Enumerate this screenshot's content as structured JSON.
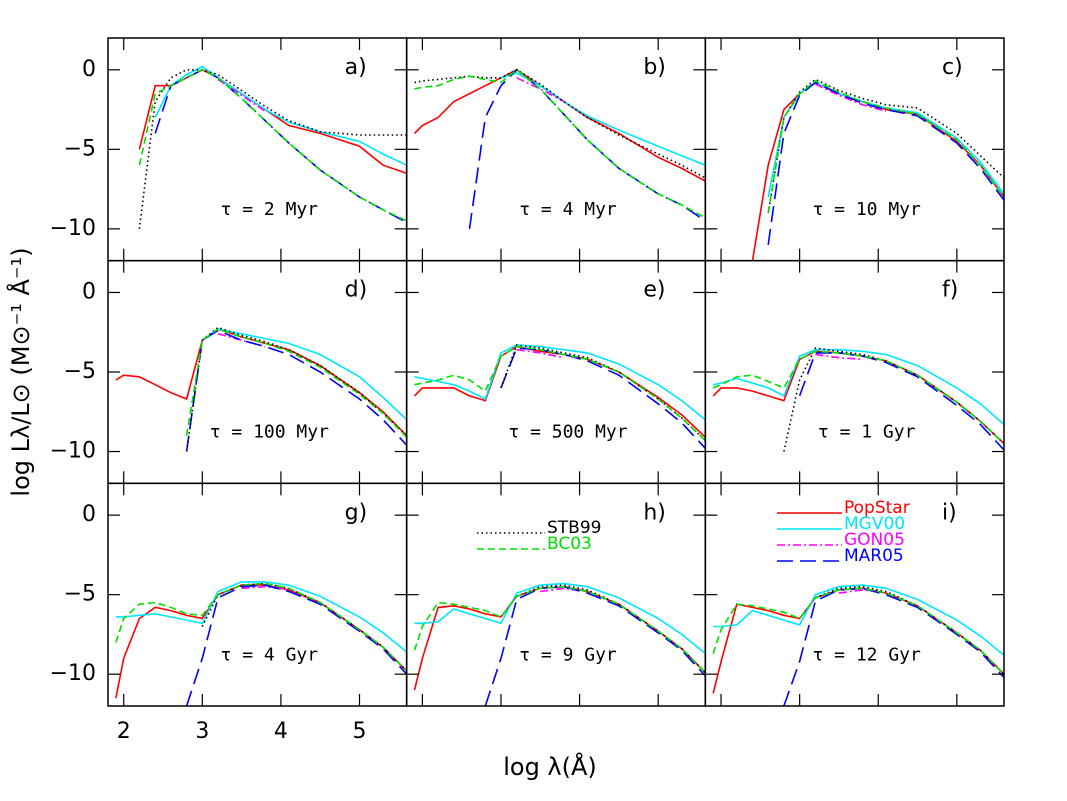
{
  "chart_data": {
    "type": "line",
    "xlabel": "log λ(Å)",
    "ylabel": "log Lλ/L⊙ (M⊙⁻¹ Å⁻¹)",
    "xlim": [
      1.8,
      5.6
    ],
    "xticks": [
      2,
      3,
      4,
      5
    ],
    "ylim": [
      -12,
      2
    ],
    "yticks": [
      0,
      {
        "value": -5,
        "label": "−5"
      },
      {
        "value": -10,
        "label": "−10"
      }
    ],
    "series": [
      {
        "name": "PopStar",
        "color": "#ff0000",
        "style": "solid"
      },
      {
        "name": "MGV00",
        "color": "#00e5ff",
        "style": "solid"
      },
      {
        "name": "GON05",
        "color": "#ff00ff",
        "style": "dash-dot"
      },
      {
        "name": "MAR05",
        "color": "#0000ff",
        "style": "long-dash"
      },
      {
        "name": "STB99",
        "color": "#000000",
        "style": "dotted"
      },
      {
        "name": "BC03",
        "color": "#00e000",
        "style": "dashed"
      }
    ],
    "x": [
      1.9,
      2.0,
      2.2,
      2.4,
      2.6,
      2.8,
      3.0,
      3.2,
      3.5,
      3.8,
      4.1,
      4.5,
      5.0,
      5.3,
      5.6
    ],
    "panels": [
      {
        "label": "a)",
        "annotation": "τ = 2  Myr",
        "values": [
          [
            null,
            null,
            -5,
            -1,
            -1,
            -0.5,
            0,
            -0.5,
            -1.5,
            -2.5,
            -3.5,
            -4,
            -4.8,
            -6,
            -6.5
          ],
          [
            null,
            null,
            null,
            -3,
            -1,
            -0.3,
            0.2,
            -0.5,
            -1.5,
            -2.5,
            -3.3,
            -3.9,
            -4.5,
            -5.3,
            -6
          ],
          [
            null,
            null,
            null,
            null,
            null,
            null,
            null,
            -0.6,
            -1.6,
            -2.6,
            null,
            null,
            null,
            null,
            null
          ],
          [
            null,
            null,
            null,
            -4,
            -1,
            -0.5,
            0,
            -0.5,
            -1.8,
            -3.2,
            -4.6,
            -6.3,
            -8,
            -8.8,
            -9.6
          ],
          [
            null,
            null,
            -10,
            -2,
            -0.5,
            0,
            0,
            -0.3,
            -1.3,
            -2.3,
            -3.2,
            -3.9,
            -4.1,
            -4.1,
            -4.1
          ],
          [
            null,
            null,
            -6,
            -1.5,
            -1,
            -0.5,
            0,
            -0.5,
            -1.8,
            -3.2,
            -4.6,
            -6.3,
            -8,
            -8.8,
            -9.5
          ]
        ]
      },
      {
        "label": "b)",
        "annotation": "τ = 4 Myr",
        "values": [
          [
            -4,
            -3.5,
            -3,
            -2,
            -1.5,
            -1,
            -0.5,
            0,
            -1,
            -2,
            -3,
            -4,
            -5.5,
            -6.2,
            -7
          ],
          [
            null,
            null,
            null,
            null,
            null,
            null,
            -0.5,
            -0.2,
            -1,
            -2,
            -2.9,
            -3.8,
            -4.8,
            -5.4,
            -6
          ],
          [
            null,
            null,
            null,
            null,
            null,
            null,
            null,
            -0.5,
            -1.2,
            -2,
            null,
            null,
            null,
            null,
            null
          ],
          [
            null,
            null,
            null,
            null,
            -10,
            -3,
            -1,
            0,
            -1.2,
            -2.8,
            -4.4,
            -6.2,
            -7.8,
            -8.5,
            -9.5
          ],
          [
            -0.8,
            -0.7,
            -0.6,
            -0.5,
            -0.4,
            -0.5,
            -0.5,
            0,
            -0.9,
            -2,
            -3,
            -4.1,
            -5.3,
            -6,
            -6.8
          ],
          [
            -1.2,
            -1.1,
            -1,
            -0.6,
            -0.4,
            -0.6,
            -0.8,
            0,
            -1.2,
            -2.8,
            -4.4,
            -6.2,
            -7.8,
            -8.5,
            -9.3
          ]
        ]
      },
      {
        "label": "c)",
        "annotation": "τ = 10 Myr",
        "values": [
          [
            null,
            null,
            null,
            -12,
            -6,
            -2.5,
            -1.5,
            -0.8,
            -1.5,
            -2,
            -2.5,
            -2.8,
            -4.5,
            -6,
            -8
          ],
          [
            null,
            null,
            null,
            null,
            -8,
            -3,
            -1.5,
            -0.8,
            -1.5,
            -2,
            -2.4,
            -2.7,
            -4.3,
            -5.8,
            -7.8
          ],
          [
            null,
            null,
            null,
            null,
            null,
            null,
            null,
            -0.9,
            -1.6,
            -2.2,
            -2.6,
            null,
            null,
            null,
            null
          ],
          [
            null,
            null,
            null,
            null,
            -11,
            -4,
            -1.6,
            -0.8,
            -1.5,
            -2.1,
            -2.5,
            -2.9,
            -4.6,
            -6.2,
            -8.2
          ],
          [
            null,
            null,
            null,
            null,
            -9,
            -3,
            -1.4,
            -0.6,
            -1.3,
            -1.8,
            -2.2,
            -2.4,
            -4,
            -5.4,
            -6.8
          ],
          [
            null,
            null,
            null,
            null,
            -9,
            -3,
            -1.5,
            -0.7,
            -1.4,
            -2,
            -2.4,
            -2.8,
            -4.4,
            -6,
            -8
          ]
        ]
      },
      {
        "label": "d)",
        "annotation": "τ = 100 Myr",
        "values": [
          [
            -5.5,
            -5.2,
            -5.3,
            -5.8,
            -6.3,
            -6.7,
            -3,
            -2.3,
            -2.8,
            -3.2,
            -3.6,
            -4.6,
            -6.3,
            -7.5,
            -9
          ],
          [
            null,
            null,
            null,
            null,
            null,
            null,
            -3,
            -2.3,
            -2.6,
            -2.9,
            -3.2,
            -3.9,
            -5.3,
            -6.6,
            -8
          ],
          [
            null,
            null,
            null,
            null,
            null,
            null,
            null,
            -2.6,
            -3,
            -3.4,
            null,
            null,
            null,
            null,
            null
          ],
          [
            null,
            null,
            null,
            null,
            null,
            -10,
            -3,
            -2.4,
            -3,
            -3.4,
            -3.9,
            -5,
            -6.7,
            -8,
            -9.6
          ],
          [
            null,
            null,
            null,
            null,
            null,
            -10,
            -3,
            -2.2,
            -2.7,
            -3.1,
            -3.6,
            -4.6,
            -6.3,
            -7.6,
            -9
          ],
          [
            null,
            null,
            null,
            null,
            null,
            -9,
            -3,
            -2.3,
            -2.8,
            -3.2,
            -3.7,
            -4.7,
            -6.4,
            -7.6,
            -9.1
          ]
        ]
      },
      {
        "label": "e)",
        "annotation": "τ = 500 Myr",
        "values": [
          [
            -6.5,
            -6,
            -6,
            -6,
            -6.5,
            -6.8,
            -4,
            -3.4,
            -3.7,
            -3.9,
            -4.2,
            -5,
            -6.6,
            -7.7,
            -9.1
          ],
          [
            -5.3,
            -5.4,
            -5.6,
            -5.8,
            -6.2,
            -6.7,
            -3.8,
            -3.3,
            -3.4,
            -3.6,
            -3.8,
            -4.5,
            -5.8,
            -6.8,
            -8
          ],
          [
            null,
            null,
            null,
            null,
            null,
            null,
            null,
            -3.6,
            -3.8,
            -4.1,
            null,
            null,
            null,
            null,
            null
          ],
          [
            null,
            null,
            null,
            null,
            null,
            null,
            -6,
            -3.5,
            -3.6,
            -3.9,
            -4.3,
            -5.2,
            -7,
            -8.2,
            -9.8
          ],
          [
            null,
            null,
            null,
            null,
            null,
            null,
            -6,
            -3.3,
            -3.5,
            -3.8,
            -4.1,
            -5,
            -6.7,
            -7.9,
            -9.3
          ],
          [
            -5.8,
            -5.7,
            -5.5,
            -5.2,
            -5.5,
            -6.2,
            -4,
            -3.4,
            -3.6,
            -3.9,
            -4.2,
            -5,
            -6.7,
            -7.9,
            -9.3
          ]
        ]
      },
      {
        "label": "f)",
        "annotation": "τ = 1 Gyr",
        "values": [
          [
            -6.5,
            -6,
            -6,
            -6.2,
            -6.5,
            -6.8,
            -4.2,
            -3.7,
            -3.8,
            -4,
            -4.3,
            -5.2,
            -6.9,
            -8.1,
            -9.5
          ],
          [
            -5.8,
            -5.7,
            -5.4,
            -5.7,
            -6,
            -6.5,
            -4,
            -3.6,
            -3.6,
            -3.7,
            -3.9,
            -4.6,
            -6,
            -7,
            -8.3
          ],
          [
            null,
            null,
            null,
            null,
            null,
            null,
            null,
            -3.9,
            -4.1,
            -4.2,
            null,
            null,
            null,
            null,
            null
          ],
          [
            null,
            null,
            null,
            null,
            null,
            null,
            -6.5,
            -3.8,
            -3.8,
            -4,
            -4.4,
            -5.3,
            -7.1,
            -8.3,
            -9.9
          ],
          [
            null,
            null,
            null,
            null,
            null,
            -10,
            -5.5,
            -3.5,
            -3.7,
            -3.9,
            -4.3,
            -5.2,
            -6.9,
            -8.1,
            -9.5
          ],
          [
            -6,
            -5.8,
            -5.3,
            -5.2,
            -5.6,
            -6,
            -4.2,
            -3.7,
            -3.8,
            -4,
            -4.3,
            -5.2,
            -6.9,
            -8.1,
            -9.5
          ]
        ]
      },
      {
        "label": "g)",
        "annotation": "τ = 4 Gyr",
        "values": [
          [
            -11.5,
            -9,
            -6.5,
            -5.8,
            -6,
            -6.3,
            -6.5,
            -5,
            -4.4,
            -4.4,
            -4.7,
            -5.5,
            -7.2,
            -8.3,
            -9.8
          ],
          [
            -6.4,
            -6.4,
            -6.3,
            -6.2,
            -6.4,
            -6.6,
            -6.8,
            -4.8,
            -4.2,
            -4.2,
            -4.4,
            -5.1,
            -6.4,
            -7.4,
            -8.6
          ],
          [
            null,
            null,
            null,
            null,
            null,
            null,
            null,
            null,
            -4.6,
            -4.5,
            -4.7,
            null,
            null,
            null,
            null
          ],
          [
            null,
            null,
            null,
            null,
            null,
            -12,
            -9,
            -5.2,
            -4.5,
            -4.4,
            -4.8,
            -5.6,
            -7.3,
            -8.4,
            -10
          ],
          [
            null,
            null,
            null,
            null,
            null,
            null,
            -7,
            -5,
            -4.4,
            -4.3,
            -4.6,
            -5.5,
            -7.2,
            -8.3,
            -9.8
          ],
          [
            -8,
            -6.5,
            -5.6,
            -5.5,
            -5.8,
            -6.2,
            -6.3,
            -5,
            -4.4,
            -4.3,
            -4.6,
            -5.5,
            -7.2,
            -8.3,
            -9.8
          ]
        ]
      },
      {
        "label": "h)",
        "annotation": "τ = 9 Gyr",
        "values": [
          [
            -11,
            -9,
            -5.8,
            -5.7,
            -5.9,
            -6.2,
            -6.4,
            -5.1,
            -4.6,
            -4.5,
            -4.8,
            -5.6,
            -7.3,
            -8.4,
            -9.9
          ],
          [
            -6.8,
            -6.8,
            -6.7,
            -5.9,
            -6.2,
            -6.5,
            -6.8,
            -4.9,
            -4.4,
            -4.3,
            -4.5,
            -5.2,
            -6.5,
            -7.5,
            -8.7
          ],
          [
            null,
            null,
            null,
            null,
            null,
            null,
            null,
            null,
            -4.8,
            -4.6,
            -4.8,
            null,
            null,
            null,
            null
          ],
          [
            null,
            null,
            null,
            null,
            null,
            -12,
            -9,
            -5.3,
            -4.6,
            -4.5,
            -4.9,
            -5.7,
            -7.4,
            -8.5,
            -10.1
          ],
          [
            null,
            null,
            null,
            null,
            null,
            null,
            null,
            -5.1,
            -4.5,
            -4.4,
            -4.7,
            -5.6,
            -7.3,
            -8.4,
            -9.9
          ],
          [
            -8.5,
            -7,
            -5.5,
            -5.6,
            -5.8,
            -6,
            -6.4,
            -5.1,
            -4.6,
            -4.5,
            -4.8,
            -5.6,
            -7.3,
            -8.4,
            -9.9
          ]
        ]
      },
      {
        "label": "i)",
        "annotation": "τ = 12 Gyr",
        "values": [
          [
            -11.2,
            -9.2,
            -5.6,
            -5.8,
            -6,
            -6.3,
            -6.5,
            -5.2,
            -4.7,
            -4.6,
            -4.9,
            -5.7,
            -7.4,
            -8.5,
            -10
          ],
          [
            -7,
            -7,
            -6.9,
            -6,
            -6.3,
            -6.6,
            -6.9,
            -5,
            -4.5,
            -4.4,
            -4.6,
            -5.3,
            -6.6,
            -7.6,
            -8.8
          ],
          [
            null,
            null,
            null,
            null,
            null,
            null,
            null,
            null,
            -4.9,
            -4.7,
            -4.9,
            null,
            null,
            null,
            null
          ],
          [
            null,
            null,
            null,
            null,
            null,
            -12,
            -9.2,
            -5.4,
            -4.7,
            -4.6,
            -5,
            -5.8,
            -7.5,
            -8.6,
            -10.2
          ],
          [
            null,
            null,
            null,
            null,
            null,
            null,
            null,
            -5.2,
            -4.6,
            -4.5,
            -4.8,
            -5.7,
            -7.4,
            -8.5,
            -10
          ],
          [
            -8.7,
            -7.2,
            -5.6,
            -5.7,
            -5.9,
            -6.1,
            -6.5,
            -5.2,
            -4.7,
            -4.6,
            -4.9,
            -5.7,
            -7.4,
            -8.5,
            -10
          ]
        ]
      }
    ]
  }
}
